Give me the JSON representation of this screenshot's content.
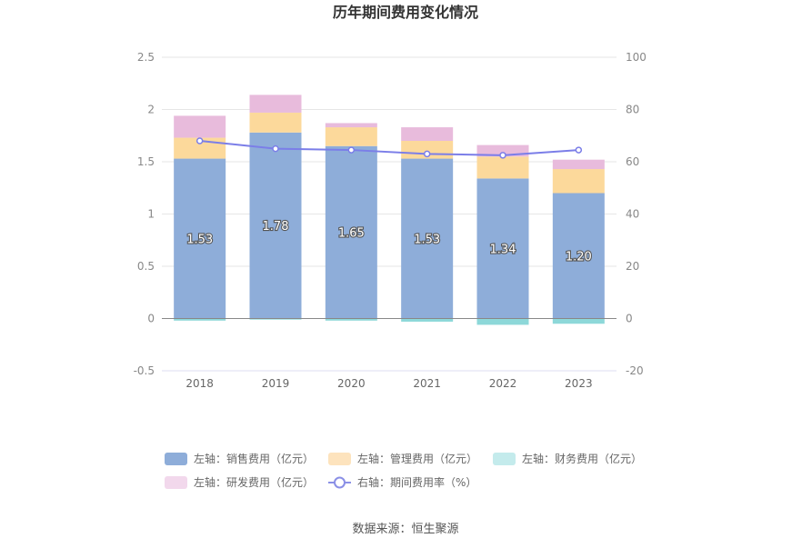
{
  "chart_data": {
    "type": "bar",
    "title": "历年期间费用变化情况",
    "categories": [
      "2018",
      "2019",
      "2020",
      "2021",
      "2022",
      "2023"
    ],
    "series": [
      {
        "name": "左轴：销售费用（亿元）",
        "axis": "left",
        "kind": "stacked-bar",
        "color": "#8eadd9",
        "values": [
          1.53,
          1.78,
          1.65,
          1.53,
          1.34,
          1.2
        ],
        "labels": [
          "1.53",
          "1.78",
          "1.65",
          "1.53",
          "1.34",
          "1.20"
        ]
      },
      {
        "name": "左轴：管理费用（亿元）",
        "axis": "left",
        "kind": "stacked-bar",
        "color": "#fcd99b",
        "values": [
          0.2,
          0.19,
          0.18,
          0.17,
          0.21,
          0.23
        ]
      },
      {
        "name": "左轴：财务费用（亿元）",
        "axis": "left",
        "kind": "stacked-bar",
        "color": "#8dd8d9",
        "values": [
          -0.02,
          -0.01,
          -0.02,
          -0.03,
          -0.06,
          -0.05
        ]
      },
      {
        "name": "左轴：研发费用（亿元）",
        "axis": "left",
        "kind": "stacked-bar",
        "color": "#e8bbdc",
        "values": [
          0.21,
          0.17,
          0.04,
          0.13,
          0.11,
          0.09
        ]
      },
      {
        "name": "右轴：期间费用率（%）",
        "axis": "right",
        "kind": "line",
        "color": "#7b7ee8",
        "values": [
          68.0,
          65.0,
          64.5,
          63.0,
          62.5,
          64.5
        ]
      }
    ],
    "y_left": {
      "min": -0.5,
      "max": 2.5,
      "ticks": [
        "2.5",
        "2",
        "1.5",
        "1",
        "0.5",
        "0",
        "-0.5"
      ]
    },
    "y_right": {
      "min": -20,
      "max": 100,
      "ticks": [
        "100",
        "80",
        "60",
        "40",
        "20",
        "0",
        "-20"
      ]
    },
    "grid": true,
    "legend_position": "bottom",
    "legend_colors": {
      "sales": "#8eadd9",
      "admin": "#fde3bd",
      "finance": "#c4ebec",
      "rnd": "#f2d8ec",
      "rate": "#8b90e6"
    }
  },
  "source": "数据来源：恒生聚源"
}
